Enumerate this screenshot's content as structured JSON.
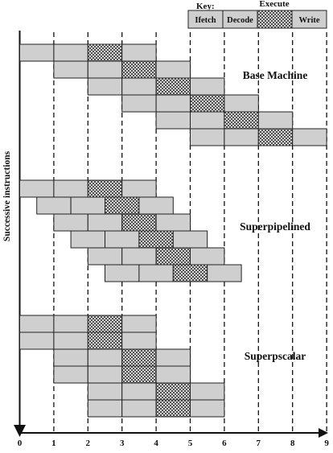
{
  "key": {
    "title": "Key:",
    "stages": [
      "Ifetch",
      "Decode",
      "Execute",
      "Write"
    ]
  },
  "y_axis_label": "Successive instructions",
  "time_ticks": [
    "0",
    "1",
    "2",
    "3",
    "4",
    "5",
    "6",
    "7",
    "8",
    "9"
  ],
  "diagrams": [
    {
      "id": "base",
      "label": "Base Machine",
      "stage_length": 1,
      "instructions": [
        {
          "start": 0
        },
        {
          "start": 1
        },
        {
          "start": 2
        },
        {
          "start": 3
        },
        {
          "start": 4
        },
        {
          "start": 5
        }
      ]
    },
    {
      "id": "superpipelined",
      "label": "Superpipelined",
      "stage_length": 1,
      "instructions": [
        {
          "start": 0
        },
        {
          "start": 0.5
        },
        {
          "start": 1
        },
        {
          "start": 1.5
        },
        {
          "start": 2
        },
        {
          "start": 2.5
        }
      ]
    },
    {
      "id": "superscalar",
      "label": "Superpscalar",
      "stage_length": 1,
      "instructions": [
        {
          "start": 0
        },
        {
          "start": 0
        },
        {
          "start": 1
        },
        {
          "start": 1
        },
        {
          "start": 2
        },
        {
          "start": 2
        }
      ]
    }
  ]
}
